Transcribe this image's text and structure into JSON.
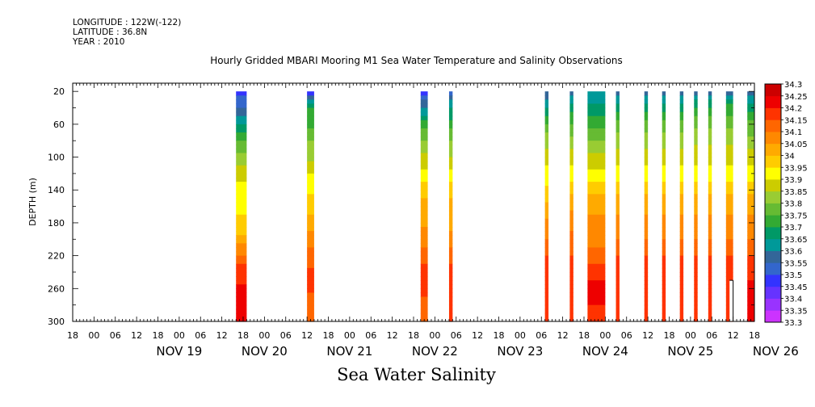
{
  "header": {
    "longitude": "LONGITUDE : 122W(-122)",
    "latitude": "LATITUDE : 36.8N",
    "year": "YEAR : 2010"
  },
  "chart_data": {
    "type": "heatmap",
    "title": "Hourly Gridded MBARI Mooring M1 Sea Water Temperature and Salinity Observations",
    "subtitle": "Sea Water Salinity",
    "ylabel": "DEPTH (m)",
    "ylim": [
      300,
      10
    ],
    "y_ticks": [
      20,
      60,
      100,
      140,
      180,
      220,
      260,
      300
    ],
    "x_tick_hours": [
      "18",
      "00",
      "06",
      "12",
      "18",
      "00",
      "06",
      "12",
      "18",
      "00",
      "06",
      "12",
      "18",
      "00",
      "06",
      "12",
      "18",
      "00",
      "06",
      "12",
      "18",
      "00",
      "06",
      "12",
      "18",
      "00",
      "06",
      "12",
      "18",
      "00",
      "06",
      "12",
      "18"
    ],
    "x_day_labels": [
      "NOV 19",
      "NOV 20",
      "NOV 21",
      "NOV 22",
      "NOV 23",
      "NOV 24",
      "NOV 25",
      "NOV 26"
    ],
    "x_range_hours": [
      "2010-11-18T18:00",
      "2010-11-26T18:00"
    ],
    "colorbar": {
      "levels": [
        "33.3",
        "33.35",
        "33.4",
        "33.45",
        "33.5",
        "33.55",
        "33.6",
        "33.65",
        "33.7",
        "33.75",
        "33.8",
        "33.85",
        "33.9",
        "33.95",
        "34",
        "34.05",
        "34.1",
        "34.15",
        "34.2",
        "34.25",
        "34.3"
      ],
      "colors": [
        "#cc33ff",
        "#9933ff",
        "#6633ff",
        "#3333ff",
        "#3366cc",
        "#336699",
        "#009999",
        "#009966",
        "#33aa33",
        "#66bb33",
        "#99cc33",
        "#cccc00",
        "#ffff00",
        "#ffcc00",
        "#ffaa00",
        "#ff8800",
        "#ff6600",
        "#ff3300",
        "#ee0000",
        "#cc0000"
      ]
    },
    "profile_depths": [
      20,
      40,
      60,
      80,
      100,
      120,
      140,
      160,
      180,
      200,
      220,
      240,
      260,
      280,
      300
    ],
    "observations": [
      {
        "start": "2010-11-20T16:00",
        "end": "2010-11-20T19:00",
        "salinity": [
          33.47,
          33.56,
          33.66,
          33.76,
          33.82,
          33.88,
          33.92,
          33.94,
          33.96,
          34.02,
          34.1,
          34.18,
          34.21,
          34.22,
          34.22
        ]
      },
      {
        "start": "2010-11-21T12:00",
        "end": "2010-11-21T14:00",
        "salinity": [
          33.47,
          33.7,
          33.74,
          33.8,
          33.84,
          33.9,
          33.94,
          33.98,
          34.03,
          34.08,
          34.12,
          34.16,
          34.16,
          34.12,
          34.1
        ]
      },
      {
        "start": "2010-11-22T20:00",
        "end": "2010-11-22T22:00",
        "salinity": [
          33.48,
          33.6,
          33.72,
          33.8,
          33.86,
          33.92,
          33.97,
          34.02,
          34.04,
          34.08,
          34.12,
          34.17,
          34.18,
          34.13,
          34.12
        ]
      },
      {
        "start": "2010-11-23T04:00",
        "end": "2010-11-23T05:00",
        "salinity": [
          33.52,
          33.65,
          33.72,
          33.8,
          33.85,
          33.92,
          33.97,
          34.02,
          34.03,
          34.08,
          34.12,
          34.18,
          34.18,
          34.15,
          34.15
        ]
      },
      {
        "start": "2010-11-24T07:00",
        "end": "2010-11-24T08:00",
        "salinity": [
          33.55,
          33.65,
          33.75,
          33.83,
          33.88,
          33.92,
          33.96,
          34.02,
          34.06,
          34.1,
          34.15,
          34.17,
          34.17,
          34.15,
          34.15
        ]
      },
      {
        "start": "2010-11-24T14:00",
        "end": "2010-11-24T15:00",
        "salinity": [
          33.58,
          33.67,
          33.76,
          33.82,
          33.88,
          33.92,
          33.98,
          34.04,
          34.07,
          34.12,
          34.15,
          34.17,
          34.18,
          34.16,
          34.15
        ]
      },
      {
        "start": "2010-11-24T19:00",
        "end": "2010-11-25T00:00",
        "salinity": [
          33.6,
          33.67,
          33.72,
          33.8,
          33.86,
          33.91,
          33.98,
          34.04,
          34.06,
          34.08,
          34.12,
          34.18,
          34.23,
          34.2,
          34.18
        ]
      },
      {
        "start": "2010-11-25T03:00",
        "end": "2010-11-25T04:00",
        "salinity": [
          33.58,
          33.68,
          33.76,
          33.83,
          33.88,
          33.93,
          33.98,
          34.04,
          34.06,
          34.1,
          34.15,
          34.17,
          34.17,
          34.16,
          34.15
        ]
      },
      {
        "start": "2010-11-25T11:00",
        "end": "2010-11-25T12:00",
        "salinity": [
          33.58,
          33.68,
          33.76,
          33.83,
          33.88,
          33.93,
          33.98,
          34.04,
          34.06,
          34.1,
          34.15,
          34.18,
          34.18,
          34.16,
          34.15
        ]
      },
      {
        "start": "2010-11-25T16:00",
        "end": "2010-11-25T17:00",
        "salinity": [
          33.58,
          33.68,
          33.76,
          33.83,
          33.88,
          33.93,
          33.98,
          34.04,
          34.06,
          34.1,
          34.15,
          34.18,
          34.2,
          34.16,
          34.15
        ]
      },
      {
        "start": "2010-11-25T21:00",
        "end": "2010-11-25T22:00",
        "salinity": [
          33.58,
          33.68,
          33.76,
          33.83,
          33.88,
          33.93,
          33.98,
          34.04,
          34.06,
          34.1,
          34.15,
          34.17,
          34.17,
          34.16,
          34.15
        ]
      },
      {
        "start": "2010-11-26T01:00",
        "end": "2010-11-26T02:00",
        "salinity": [
          33.58,
          33.7,
          33.78,
          33.84,
          33.88,
          33.93,
          33.98,
          34.04,
          34.06,
          34.1,
          34.15,
          34.18,
          34.2,
          34.17,
          34.15
        ]
      },
      {
        "start": "2010-11-26T05:00",
        "end": "2010-11-26T06:00",
        "salinity": [
          33.57,
          33.7,
          33.78,
          33.84,
          33.88,
          33.93,
          33.98,
          34.04,
          34.06,
          34.1,
          34.15,
          34.18,
          34.18,
          34.16,
          34.15
        ]
      },
      {
        "start": "2010-11-26T10:00",
        "end": "2010-11-26T12:00",
        "salinity": [
          33.58,
          33.72,
          33.78,
          33.84,
          33.88,
          33.93,
          33.98,
          34.04,
          34.06,
          34.1,
          34.15,
          34.18,
          34.2,
          34.17,
          34.15
        ],
        "partial_to": "2010-11-26T11:00",
        "partial_depth": 250
      },
      {
        "start": "2010-11-26T16:00",
        "end": "2010-11-26T18:00",
        "salinity": [
          33.56,
          33.68,
          33.76,
          33.82,
          33.88,
          33.93,
          33.98,
          34.04,
          34.06,
          34.1,
          34.15,
          34.18,
          34.23,
          34.22,
          34.2
        ]
      }
    ],
    "grid": false
  }
}
